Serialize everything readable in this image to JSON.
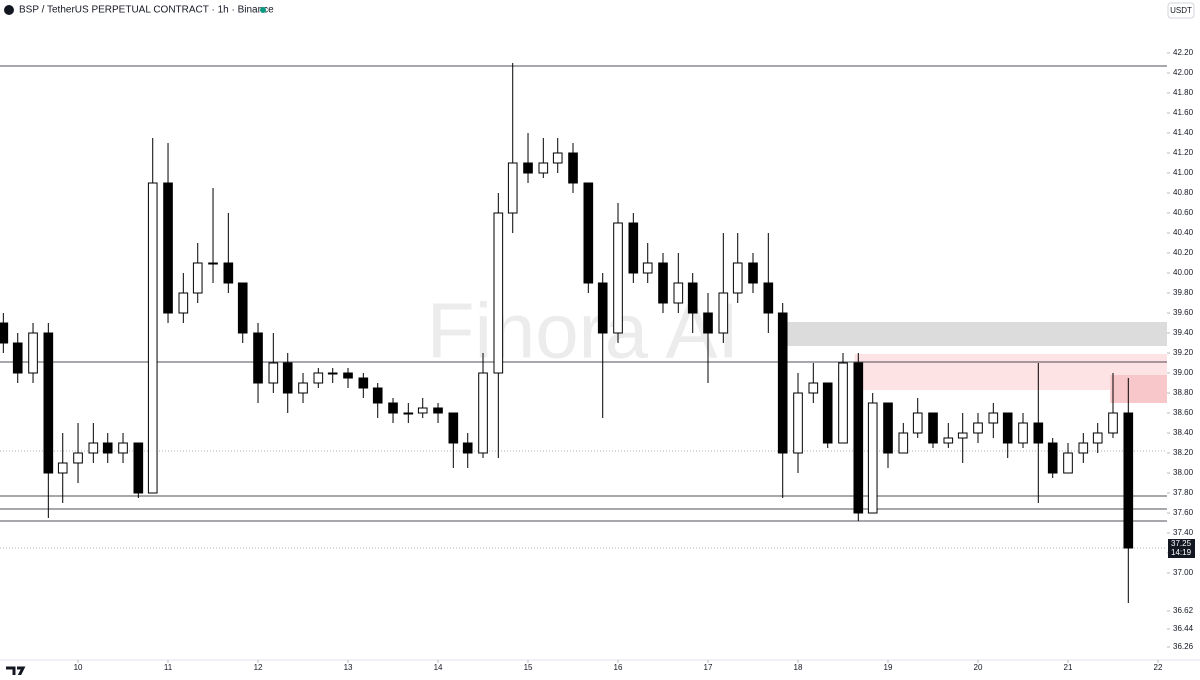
{
  "chart_data": {
    "type": "candlestick",
    "title": "BSP / TetherUS PERPETUAL CONTRACT · 1h · Binance",
    "currency": "USDT",
    "watermark": "Finora AI",
    "x": [
      9.17,
      9.33,
      9.5,
      9.67,
      9.83,
      10,
      10.17,
      10.33,
      10.5,
      10.67,
      10.83,
      11,
      11.17,
      11.33,
      11.5,
      11.67,
      11.83,
      12,
      12.17,
      12.33,
      12.5,
      12.67,
      12.83,
      13,
      13.17,
      13.33,
      13.5,
      13.67,
      13.83,
      14,
      14.17,
      14.33,
      14.5,
      14.67,
      14.83,
      15,
      15.17,
      15.33,
      15.5,
      15.67,
      15.83,
      16,
      16.17,
      16.33,
      16.5,
      16.67,
      16.83,
      17,
      17.17,
      17.33,
      17.5,
      17.67,
      17.83,
      18,
      18.17,
      18.33,
      18.5,
      18.67,
      18.83,
      19,
      19.17,
      19.33,
      19.5,
      19.67,
      19.83,
      20,
      20.17,
      20.33,
      20.5,
      20.67,
      20.83,
      21,
      21.17,
      21.33,
      21.5,
      21.67
    ],
    "open": [
      39.5,
      39.3,
      39.0,
      39.4,
      38.0,
      38.1,
      38.2,
      38.3,
      38.2,
      38.3,
      37.8,
      40.9,
      39.6,
      39.8,
      40.1,
      40.1,
      39.9,
      39.4,
      38.9,
      39.1,
      38.8,
      38.9,
      39.0,
      39.0,
      38.95,
      38.85,
      38.7,
      38.6,
      38.6,
      38.65,
      38.6,
      38.3,
      38.2,
      39.0,
      40.6,
      41.1,
      41.0,
      41.1,
      41.2,
      40.9,
      39.9,
      39.4,
      40.5,
      40.0,
      40.1,
      39.7,
      39.9,
      39.6,
      39.4,
      39.8,
      40.1,
      39.9,
      39.6,
      38.2,
      38.8,
      38.9,
      38.3,
      39.1,
      37.6,
      38.7,
      38.2,
      38.4,
      38.6,
      38.3,
      38.35,
      38.4,
      38.5,
      38.6,
      38.3,
      38.5,
      38.3,
      38.0,
      38.2,
      38.3,
      38.4,
      38.6
    ],
    "high": [
      39.6,
      39.4,
      39.5,
      39.5,
      38.4,
      38.5,
      38.5,
      38.4,
      38.4,
      38.3,
      41.35,
      41.3,
      40.0,
      40.3,
      40.85,
      40.6,
      39.9,
      39.5,
      39.4,
      39.2,
      39.0,
      39.05,
      39.05,
      39.05,
      39.0,
      38.9,
      38.75,
      38.7,
      38.75,
      38.7,
      38.6,
      38.4,
      39.2,
      40.8,
      42.1,
      41.4,
      41.35,
      41.35,
      41.3,
      40.9,
      40.0,
      40.7,
      40.6,
      40.3,
      40.2,
      40.2,
      40.0,
      39.8,
      40.4,
      40.4,
      40.2,
      40.4,
      39.7,
      39.0,
      39.1,
      38.9,
      39.2,
      39.2,
      38.8,
      38.7,
      38.5,
      38.75,
      38.6,
      38.5,
      38.6,
      38.6,
      38.7,
      38.6,
      38.6,
      39.1,
      38.35,
      38.3,
      38.4,
      38.5,
      39.0,
      38.95
    ],
    "low": [
      39.2,
      38.9,
      38.9,
      37.55,
      37.7,
      37.9,
      38.1,
      38.1,
      38.1,
      37.75,
      37.8,
      39.5,
      39.5,
      39.7,
      39.9,
      39.8,
      39.3,
      38.7,
      38.8,
      38.6,
      38.7,
      38.85,
      38.9,
      38.85,
      38.75,
      38.55,
      38.5,
      38.5,
      38.55,
      38.5,
      38.05,
      38.05,
      38.15,
      38.15,
      40.4,
      40.9,
      40.95,
      41.0,
      40.8,
      39.8,
      38.55,
      39.3,
      39.9,
      39.9,
      39.6,
      39.6,
      39.4,
      38.9,
      39.3,
      39.7,
      39.8,
      39.4,
      37.75,
      38.0,
      38.7,
      38.25,
      38.3,
      37.52,
      37.6,
      38.05,
      38.2,
      38.35,
      38.25,
      38.25,
      38.1,
      38.3,
      38.35,
      38.15,
      38.25,
      37.7,
      37.95,
      38.0,
      38.1,
      38.2,
      38.35,
      36.7
    ],
    "close": [
      39.3,
      39.0,
      39.4,
      38.0,
      38.1,
      38.2,
      38.3,
      38.2,
      38.3,
      37.8,
      40.9,
      39.6,
      39.8,
      40.1,
      40.1,
      39.9,
      39.4,
      38.9,
      39.1,
      38.8,
      38.9,
      39.0,
      39.0,
      38.95,
      38.85,
      38.7,
      38.6,
      38.6,
      38.65,
      38.6,
      38.3,
      38.2,
      39.0,
      40.6,
      41.1,
      41.0,
      41.1,
      41.2,
      40.9,
      39.9,
      39.4,
      40.5,
      40.0,
      40.1,
      39.7,
      39.9,
      39.6,
      39.4,
      39.8,
      40.1,
      39.9,
      39.6,
      38.2,
      38.8,
      38.9,
      38.3,
      39.1,
      37.6,
      38.7,
      38.2,
      38.4,
      38.6,
      38.3,
      38.35,
      38.4,
      38.5,
      38.6,
      38.3,
      38.5,
      38.3,
      38.0,
      38.2,
      38.3,
      38.4,
      38.6,
      37.25
    ],
    "up_color": "#ffffff",
    "down_color": "#000000",
    "wick_color": "#000000",
    "xlim": [
      9.133,
      22.1
    ],
    "xticks": [
      10,
      11,
      12,
      13,
      14,
      15,
      16,
      17,
      18,
      19,
      20,
      21,
      22
    ],
    "ylim": [
      36.13,
      42.53
    ],
    "yticks": [
      {
        "value": 42.2,
        "label": "42.20"
      },
      {
        "value": 42.0,
        "label": "42.00"
      },
      {
        "value": 41.8,
        "label": "41.80"
      },
      {
        "value": 41.6,
        "label": "41.60"
      },
      {
        "value": 41.4,
        "label": "41.40"
      },
      {
        "value": 41.2,
        "label": "41.20"
      },
      {
        "value": 41.0,
        "label": "41.00"
      },
      {
        "value": 40.8,
        "label": "40.80"
      },
      {
        "value": 40.6,
        "label": "40.60"
      },
      {
        "value": 40.4,
        "label": "40.40"
      },
      {
        "value": 40.2,
        "label": "40.20"
      },
      {
        "value": 40.0,
        "label": "40.00"
      },
      {
        "value": 39.8,
        "label": "39.80"
      },
      {
        "value": 39.6,
        "label": "39.60"
      },
      {
        "value": 39.4,
        "label": "39.40"
      },
      {
        "value": 39.2,
        "label": "39.20"
      },
      {
        "value": 39.0,
        "label": "39.00"
      },
      {
        "value": 38.8,
        "label": "38.80"
      },
      {
        "value": 38.6,
        "label": "38.60"
      },
      {
        "value": 38.4,
        "label": "38.40"
      },
      {
        "value": 38.2,
        "label": "38.20"
      },
      {
        "value": 38.0,
        "label": "38.00"
      },
      {
        "value": 37.8,
        "label": "37.80"
      },
      {
        "value": 37.6,
        "label": "37.60"
      },
      {
        "value": 37.4,
        "label": "37.40"
      },
      {
        "value": 37.2,
        "label": "37.20"
      },
      {
        "value": 37.0,
        "label": "37.00"
      },
      36.62,
      36.44,
      36.26
    ],
    "levels": [
      {
        "value": 42.07,
        "style": "solid"
      },
      {
        "value": 39.11,
        "style": "solid"
      },
      {
        "value": 38.22,
        "style": "dotted"
      },
      {
        "value": 37.77,
        "style": "solid"
      },
      {
        "value": 37.64,
        "style": "solid"
      },
      {
        "value": 37.52,
        "style": "solid"
      },
      {
        "value": 37.25,
        "style": "dotted"
      }
    ],
    "zones": [
      {
        "x0": 17.78,
        "low": 39.27,
        "high": 39.51,
        "color": "#dcdcdc"
      },
      {
        "x0": 18.63,
        "low": 38.83,
        "high": 39.19,
        "color": "#fde3e4"
      },
      {
        "x0": 21.47,
        "low": 38.7,
        "high": 38.98,
        "color": "#f7c7ca"
      }
    ],
    "last_price": 37.25,
    "countdown": "14:19"
  }
}
